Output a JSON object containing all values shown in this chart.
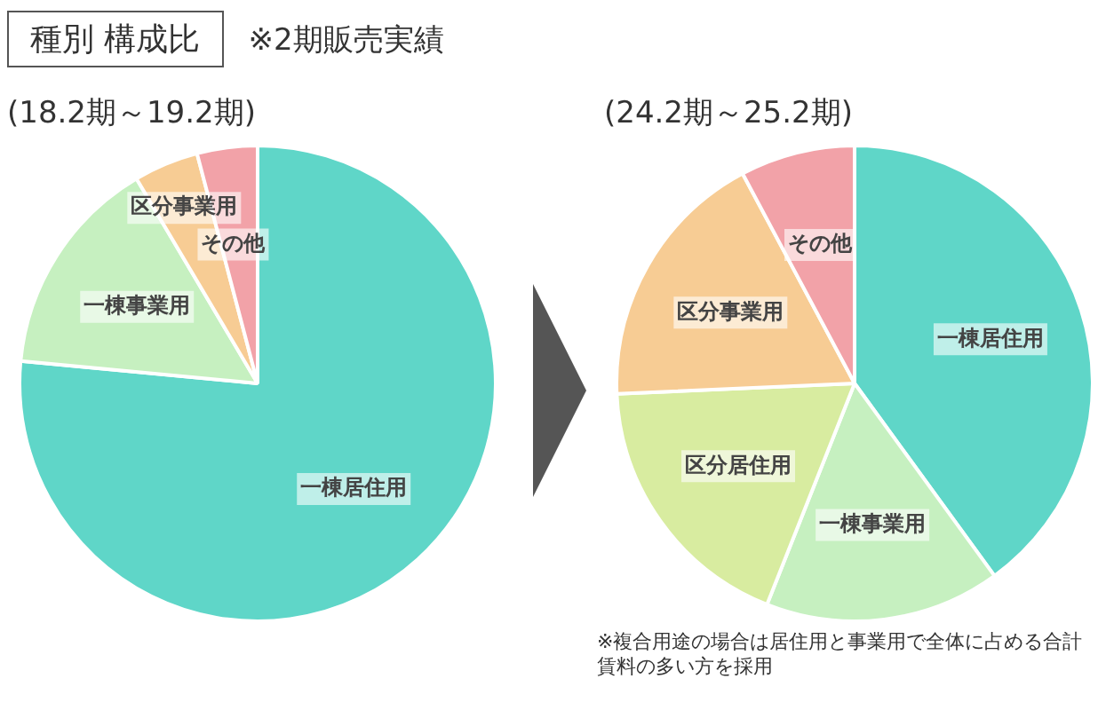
{
  "chart_data": [
    {
      "type": "other",
      "title": "種別 構成比",
      "subtitle": "※2期販売実績"
    },
    {
      "type": "pie",
      "title": "(18.2期～19.2期)",
      "categories": [
        "一棟居住用",
        "一棟事業用",
        "区分事業用",
        "その他"
      ],
      "values": [
        76.5,
        15,
        4.4,
        4.1
      ],
      "colors": [
        "#5fd6c8",
        "#c6f0c0",
        "#f7cc94",
        "#f2a2a8"
      ]
    },
    {
      "type": "pie",
      "title": "(24.2期～25.2期)",
      "categories": [
        "一棟居住用",
        "一棟事業用",
        "区分居住用",
        "区分事業用",
        "その他"
      ],
      "values": [
        40,
        16,
        18.3,
        17.9,
        7.8
      ],
      "colors": [
        "#5fd6c8",
        "#c6f0c0",
        "#d8eca0",
        "#f7cc94",
        "#f2a2a8"
      ],
      "annotations": [
        "※複合用途の場合は居住用と事業用で全体に占める合計賃料の多い方を採用"
      ]
    }
  ]
}
